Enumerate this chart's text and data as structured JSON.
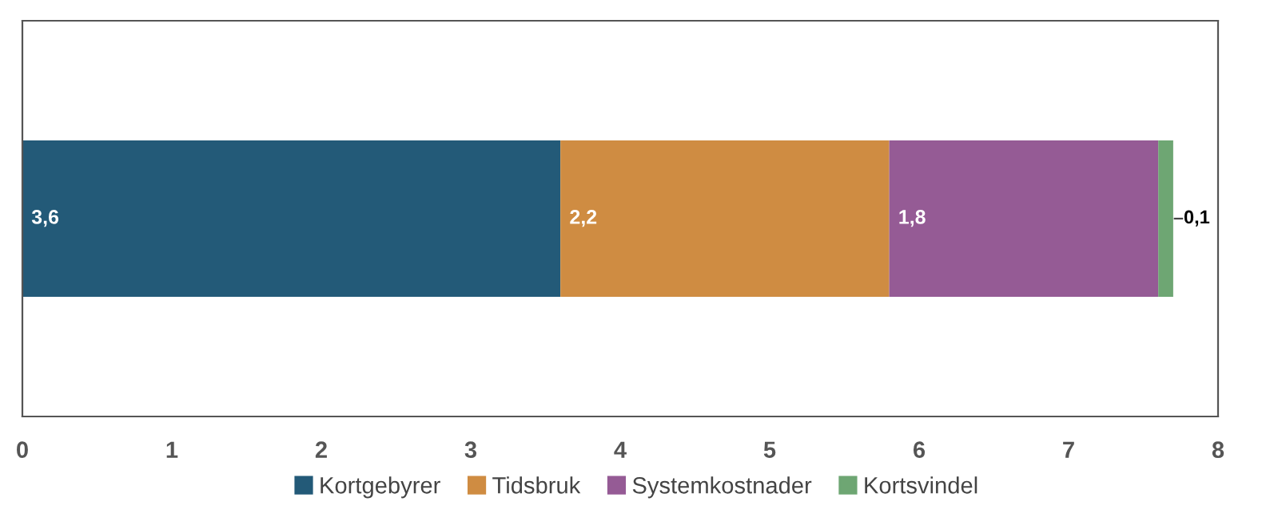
{
  "chart_data": {
    "type": "bar",
    "orientation": "horizontal",
    "stacked": true,
    "categories": [
      null
    ],
    "series": [
      {
        "name": "Kortgebyrer",
        "color": "#235a78",
        "values": [
          3.6
        ],
        "value_labels": [
          "3,6"
        ]
      },
      {
        "name": "Tidsbruk",
        "color": "#cf8c42",
        "values": [
          2.2
        ],
        "value_labels": [
          "2,2"
        ]
      },
      {
        "name": "Systemkostnader",
        "color": "#955b95",
        "values": [
          1.8
        ],
        "value_labels": [
          "1,8"
        ]
      },
      {
        "name": "Kortsvindel",
        "color": "#6ea673",
        "values": [
          0.1
        ],
        "value_labels": [
          "0,1"
        ]
      }
    ],
    "xlim": [
      0,
      8
    ],
    "xticks": [
      0,
      1,
      2,
      3,
      4,
      5,
      6,
      7,
      8
    ],
    "grid": false,
    "legend": "bottom"
  }
}
